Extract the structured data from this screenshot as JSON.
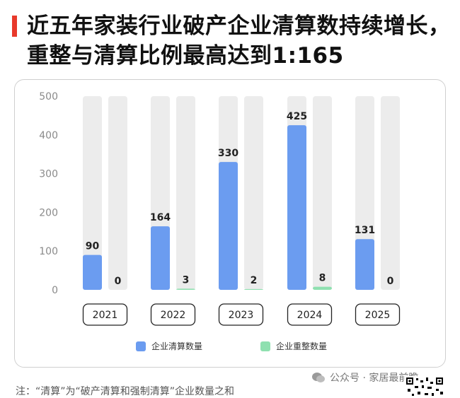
{
  "title": "近五年家装行业破产企业清算数持续增长，重整与清算比例最高达到1:165",
  "colors": {
    "accent": "#e8392b",
    "series_clear": "#6b9cf0",
    "series_reorg": "#8fe0b0",
    "track": "#ececec"
  },
  "legend": {
    "clear_label": "企业清算数量",
    "reorg_label": "企业重整数量"
  },
  "note": "注：“清算”为“破产清算和强制清算”企业数量之和",
  "watermark": "公众号 · 家居最前瞻",
  "chart_data": {
    "type": "bar",
    "categories": [
      "2021",
      "2022",
      "2023",
      "2024",
      "2025"
    ],
    "series": [
      {
        "name": "企业清算数量",
        "values": [
          90,
          164,
          330,
          425,
          131
        ]
      },
      {
        "name": "企业重整数量",
        "values": [
          0,
          3,
          2,
          8,
          0
        ]
      }
    ],
    "ylim": [
      0,
      500
    ],
    "yticks": [
      0,
      100,
      200,
      300,
      400,
      500
    ],
    "grid": false,
    "legend_position": "bottom"
  }
}
